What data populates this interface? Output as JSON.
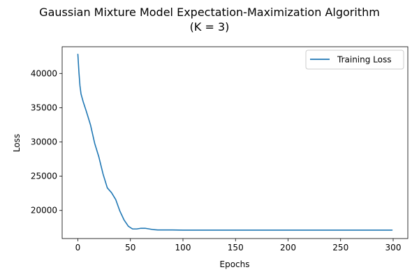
{
  "chart_data": {
    "type": "line",
    "title_line1": "Gaussian Mixture Model Expectation-Maximization Algorithm",
    "title_line2": "(K = 3)",
    "xlabel": "Epochs",
    "ylabel": "Loss",
    "xlim": [
      -14.95,
      313.95
    ],
    "ylim": [
      15900,
      43900
    ],
    "xticks": [
      0,
      50,
      100,
      150,
      200,
      250,
      300
    ],
    "yticks": [
      20000,
      25000,
      30000,
      35000,
      40000
    ],
    "grid": false,
    "legend_position": "upper right",
    "series": [
      {
        "name": "Training Loss",
        "color": "#1f77b4",
        "x": [
          0,
          1,
          2,
          3,
          5,
          8,
          12,
          16,
          20,
          24,
          28,
          32,
          36,
          40,
          44,
          48,
          52,
          56,
          60,
          64,
          68,
          72,
          76,
          80,
          90,
          100,
          150,
          200,
          250,
          299
        ],
        "y": [
          42800,
          40200,
          38200,
          37000,
          35900,
          34500,
          32500,
          29800,
          27800,
          25300,
          23300,
          22600,
          21600,
          19900,
          18600,
          17700,
          17300,
          17300,
          17400,
          17400,
          17300,
          17200,
          17150,
          17150,
          17150,
          17130,
          17130,
          17130,
          17130,
          17130
        ]
      }
    ]
  }
}
